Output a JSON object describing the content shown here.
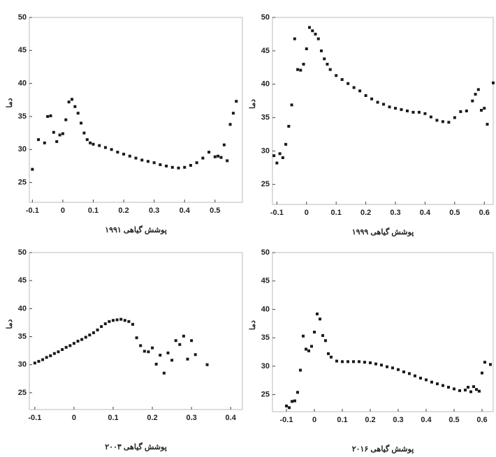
{
  "chart_data": [
    {
      "type": "scatter",
      "xlabel": "پوشش گیاهی ۱۹۹۱",
      "ylabel": "دما",
      "color": "#1a1a1a",
      "x": [
        -0.1,
        -0.08,
        -0.06,
        -0.05,
        -0.04,
        -0.03,
        -0.02,
        -0.01,
        0,
        0.01,
        0.02,
        0.03,
        0.04,
        0.05,
        0.06,
        0.07,
        0.08,
        0.09,
        0.1,
        0.12,
        0.14,
        0.16,
        0.18,
        0.2,
        0.22,
        0.24,
        0.26,
        0.28,
        0.3,
        0.32,
        0.34,
        0.36,
        0.38,
        0.4,
        0.42,
        0.44,
        0.46,
        0.48,
        0.5,
        0.51,
        0.52,
        0.53,
        0.54,
        0.55,
        0.56,
        0.57
      ],
      "values": [
        27,
        31.5,
        31,
        35,
        35.1,
        32.6,
        31.2,
        32.2,
        32.4,
        34.5,
        37.2,
        37.6,
        36.5,
        35.5,
        34,
        32.5,
        31.5,
        31,
        30.8,
        30.6,
        30.3,
        30,
        29.6,
        29.3,
        29,
        28.7,
        28.4,
        28.2,
        28,
        27.7,
        27.5,
        27.3,
        27.2,
        27.3,
        27.6,
        28,
        28.7,
        29.6,
        28.9,
        29,
        28.8,
        30.7,
        28.3,
        33.8,
        35.5,
        37.3
      ],
      "xlim": [
        -0.11,
        0.59
      ],
      "ylim": [
        22,
        50
      ],
      "xticks": [
        -0.1,
        0,
        0.1,
        0.2,
        0.3,
        0.4,
        0.5
      ],
      "yticks": [
        25,
        30,
        35,
        40,
        45,
        50
      ]
    },
    {
      "type": "scatter",
      "xlabel": "پوشش گیاهی ۱۹۹۹",
      "ylabel": "دما",
      "color": "#1a1a1a",
      "x": [
        -0.11,
        -0.1,
        -0.09,
        -0.08,
        -0.07,
        -0.06,
        -0.05,
        -0.04,
        -0.03,
        -0.02,
        -0.01,
        0,
        0.01,
        0.02,
        0.03,
        0.04,
        0.05,
        0.06,
        0.07,
        0.08,
        0.1,
        0.12,
        0.14,
        0.16,
        0.18,
        0.2,
        0.22,
        0.24,
        0.26,
        0.28,
        0.3,
        0.32,
        0.34,
        0.36,
        0.38,
        0.4,
        0.42,
        0.44,
        0.46,
        0.48,
        0.5,
        0.52,
        0.54,
        0.56,
        0.57,
        0.58,
        0.59,
        0.6,
        0.61,
        0.63
      ],
      "values": [
        29.3,
        28.2,
        29.6,
        29,
        31,
        33.7,
        36.9,
        46.8,
        42.2,
        42.1,
        43,
        45.3,
        48.5,
        48,
        47.5,
        46.8,
        45,
        43.8,
        43,
        42.2,
        41.3,
        40.7,
        40.1,
        39.5,
        39,
        38.3,
        37.8,
        37.3,
        37,
        36.6,
        36.4,
        36.2,
        36,
        35.8,
        35.8,
        35.6,
        35.1,
        34.6,
        34.4,
        34.3,
        35,
        35.9,
        36,
        37.5,
        38.5,
        39.2,
        36.1,
        36.4,
        34,
        40.2
      ],
      "xlim": [
        -0.115,
        0.63
      ],
      "ylim": [
        22,
        50
      ],
      "xticks": [
        -0.1,
        0,
        0.1,
        0.2,
        0.3,
        0.4,
        0.5,
        0.6
      ],
      "yticks": [
        25,
        30,
        35,
        40,
        45,
        50
      ]
    },
    {
      "type": "scatter",
      "xlabel": "پوشش گیاهی ۲۰۰۳",
      "ylabel": "دما",
      "color": "#1a1a1a",
      "x": [
        -0.1,
        -0.09,
        -0.08,
        -0.07,
        -0.06,
        -0.05,
        -0.04,
        -0.03,
        -0.02,
        -0.01,
        0,
        0.01,
        0.02,
        0.03,
        0.04,
        0.05,
        0.06,
        0.07,
        0.08,
        0.09,
        0.1,
        0.11,
        0.12,
        0.13,
        0.14,
        0.15,
        0.16,
        0.17,
        0.18,
        0.19,
        0.2,
        0.21,
        0.22,
        0.23,
        0.24,
        0.25,
        0.26,
        0.27,
        0.28,
        0.29,
        0.3,
        0.31,
        0.34
      ],
      "values": [
        30.3,
        30.6,
        30.9,
        31.3,
        31.6,
        32,
        32.3,
        32.7,
        33.1,
        33.4,
        33.8,
        34.2,
        34.5,
        34.9,
        35.3,
        35.7,
        36.2,
        36.8,
        37.3,
        37.7,
        37.9,
        38,
        38.1,
        37.9,
        37.7,
        37.2,
        34.8,
        33.4,
        32.4,
        32.3,
        33,
        30.1,
        31.7,
        28.5,
        32.1,
        30.8,
        34.3,
        33.6,
        35.1,
        31,
        34.3,
        31.8,
        30
      ],
      "xlim": [
        -0.114,
        0.43
      ],
      "ylim": [
        22,
        50
      ],
      "xticks": [
        -0.1,
        0,
        0.1,
        0.2,
        0.3,
        0.4
      ],
      "yticks": [
        25,
        30,
        35,
        40,
        45,
        50
      ]
    },
    {
      "type": "scatter",
      "xlabel": "پوشش گیاهی ۲۰۱۶",
      "ylabel": "دما",
      "color": "#1a1a1a",
      "x": [
        -0.1,
        -0.09,
        -0.08,
        -0.07,
        -0.06,
        -0.05,
        -0.04,
        -0.03,
        -0.02,
        -0.01,
        0,
        0.01,
        0.02,
        0.03,
        0.04,
        0.05,
        0.06,
        0.08,
        0.1,
        0.12,
        0.14,
        0.16,
        0.18,
        0.2,
        0.22,
        0.24,
        0.26,
        0.28,
        0.3,
        0.32,
        0.34,
        0.36,
        0.38,
        0.4,
        0.42,
        0.44,
        0.46,
        0.48,
        0.5,
        0.52,
        0.54,
        0.55,
        0.56,
        0.57,
        0.58,
        0.59,
        0.6,
        0.61,
        0.63
      ],
      "values": [
        23,
        22.7,
        23.8,
        23.9,
        25.4,
        29.3,
        35.3,
        33,
        32.7,
        33.5,
        36,
        39.2,
        38.3,
        35.4,
        34.5,
        32.2,
        31.6,
        30.9,
        30.8,
        30.8,
        30.8,
        30.8,
        30.7,
        30.6,
        30.4,
        30.2,
        29.9,
        29.7,
        29.4,
        29,
        28.7,
        28.3,
        27.9,
        27.6,
        27.2,
        26.9,
        26.6,
        26.3,
        26,
        25.7,
        25.8,
        26.3,
        25.5,
        26.4,
        25.9,
        25.6,
        28.8,
        30.7,
        30.3
      ],
      "xlim": [
        -0.15,
        0.64
      ],
      "ylim": [
        22,
        50
      ],
      "xticks": [
        -0.1,
        0,
        0.1,
        0.2,
        0.3,
        0.4,
        0.5,
        0.6
      ],
      "yticks": [
        25,
        30,
        35,
        40,
        45,
        50
      ]
    }
  ]
}
